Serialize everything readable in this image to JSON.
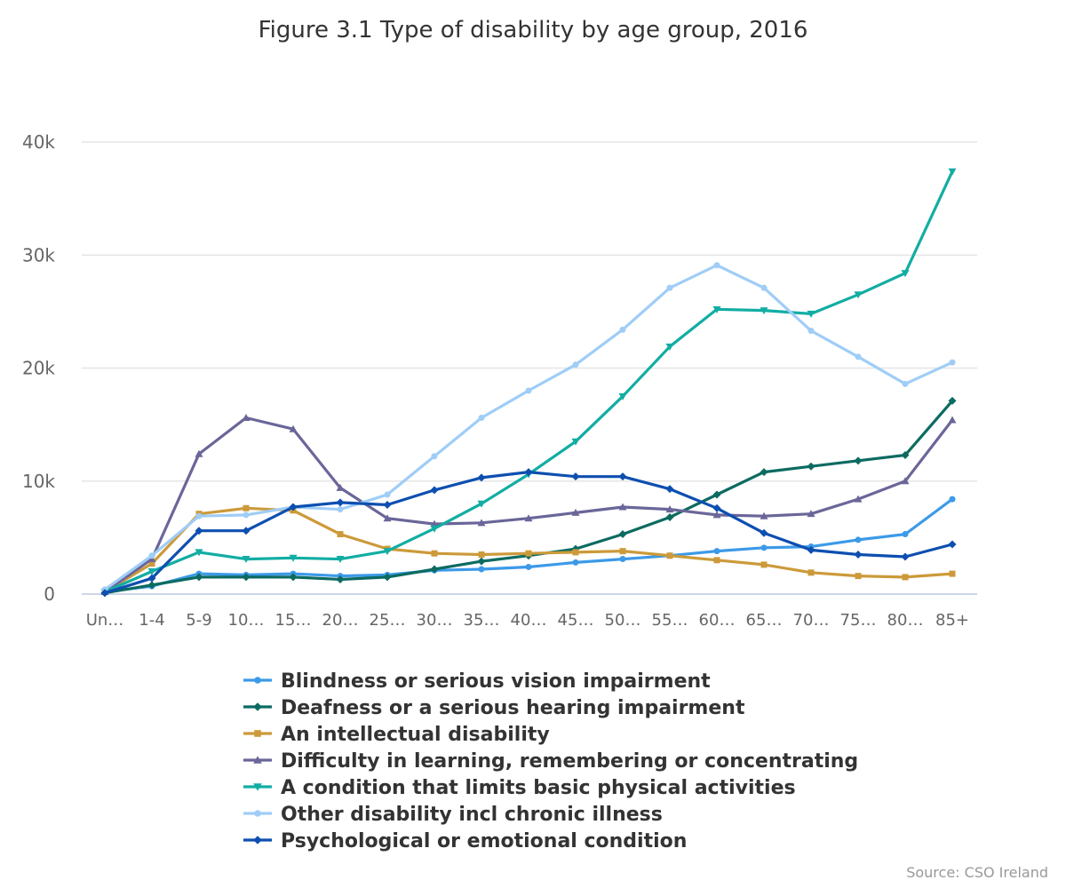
{
  "source": "Source: CSO Ireland",
  "chart_data": {
    "type": "line",
    "title": "Figure 3.1 Type of disability by age group, 2016",
    "xlabel": "",
    "ylabel": "",
    "ylim": [
      0,
      40000
    ],
    "yticks": [
      0,
      10000,
      20000,
      30000,
      40000
    ],
    "ytick_labels": [
      "0",
      "10k",
      "20k",
      "30k",
      "40k"
    ],
    "grid": true,
    "legend": "bottom",
    "categories": [
      "Un…",
      "1-4",
      "5-9",
      "10…",
      "15…",
      "20…",
      "25…",
      "30…",
      "35…",
      "40…",
      "45…",
      "50…",
      "55…",
      "60…",
      "65…",
      "70…",
      "75…",
      "80…",
      "85+"
    ],
    "series": [
      {
        "name": "Blindness or serious vision impairment",
        "color": "#3c9ae8",
        "marker": "circle",
        "values": [
          200,
          700,
          1800,
          1700,
          1800,
          1600,
          1700,
          2100,
          2200,
          2400,
          2800,
          3100,
          3400,
          3800,
          4100,
          4200,
          4800,
          5300,
          8400
        ]
      },
      {
        "name": "Deafness or a serious hearing impairment",
        "color": "#0c6b61",
        "marker": "diamond",
        "values": [
          100,
          800,
          1500,
          1500,
          1500,
          1300,
          1500,
          2200,
          2900,
          3400,
          4000,
          5300,
          6800,
          8800,
          10800,
          11300,
          11800,
          12300,
          17100
        ]
      },
      {
        "name": "An intellectual disability",
        "color": "#cc9a3a",
        "marker": "square",
        "values": [
          200,
          2700,
          7100,
          7600,
          7400,
          5300,
          4000,
          3600,
          3500,
          3600,
          3700,
          3800,
          3400,
          3000,
          2600,
          1900,
          1600,
          1500,
          1800
        ]
      },
      {
        "name": "Difficulty in learning, remembering or concentrating",
        "color": "#6a6699",
        "marker": "triangle",
        "values": [
          200,
          3100,
          12400,
          15600,
          14600,
          9400,
          6700,
          6200,
          6300,
          6700,
          7200,
          7700,
          7500,
          7000,
          6900,
          7100,
          8400,
          10000,
          15400
        ]
      },
      {
        "name": "A condition that limits basic physical activities",
        "color": "#12ada3",
        "marker": "triangle-down",
        "values": [
          200,
          2000,
          3700,
          3100,
          3200,
          3100,
          3800,
          5800,
          8000,
          10600,
          13500,
          17500,
          21900,
          25200,
          25100,
          24800,
          26500,
          28400,
          37400
        ]
      },
      {
        "name": "Other disability incl chronic illness",
        "color": "#9fcdf7",
        "marker": "circle",
        "values": [
          400,
          3400,
          6900,
          7000,
          7700,
          7500,
          8800,
          12200,
          15600,
          18000,
          20300,
          23400,
          27100,
          29100,
          27100,
          23300,
          21000,
          18600,
          20500
        ]
      },
      {
        "name": "Psychological or emotional condition",
        "color": "#0d4fb0",
        "marker": "diamond",
        "values": [
          100,
          1400,
          5600,
          5600,
          7700,
          8100,
          7900,
          9200,
          10300,
          10800,
          10400,
          10400,
          9300,
          7600,
          5400,
          3900,
          3500,
          3300,
          4400
        ]
      }
    ]
  }
}
